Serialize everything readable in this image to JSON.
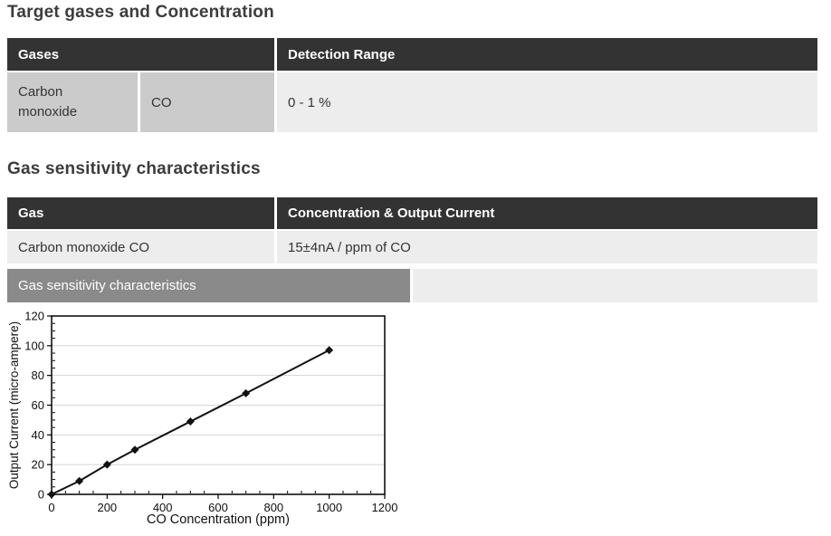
{
  "section1": {
    "title": "Target gases and Concentration"
  },
  "table1": {
    "headers": [
      "Gases",
      "Detection Range"
    ],
    "row": {
      "name": "Carbon\nmonoxide",
      "symbol": "CO",
      "range": "0 - 1 %"
    }
  },
  "section2": {
    "title": "Gas sensitivity characteristics"
  },
  "table2": {
    "headers": [
      "Gas",
      "Concentration & Output Current"
    ],
    "row": {
      "gas": "Carbon monoxide CO",
      "value": "15±4nA / ppm of CO"
    }
  },
  "banner": {
    "label": "Gas sensitivity characteristics"
  },
  "colors": {
    "header_bg": "#333333",
    "cell_gray": "#cbcbcb",
    "cell_light": "#ededed",
    "banner_bg": "#8a8a8a",
    "grid": "#d4d4d4",
    "line": "#111111",
    "frame": "#000000"
  },
  "chart_data": {
    "type": "line",
    "title": "",
    "x": [
      0,
      100,
      200,
      300,
      500,
      700,
      1000
    ],
    "y": [
      0,
      9,
      20,
      30,
      49,
      68,
      97
    ],
    "xlabel": "CO Concentration (ppm)",
    "ylabel": "Output Current (micro-ampere)",
    "xlim": [
      0,
      1200
    ],
    "ylim": [
      0,
      120
    ],
    "xticks": [
      0,
      200,
      400,
      600,
      800,
      1000,
      1200
    ],
    "yticks": [
      0,
      20,
      40,
      60,
      80,
      100,
      120
    ],
    "x_minor_step": 50,
    "y_minor_step": 5,
    "grid": "horizontal-major",
    "legend": "none",
    "marker": "diamond"
  }
}
